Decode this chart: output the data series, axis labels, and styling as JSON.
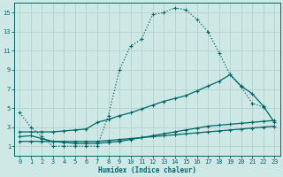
{
  "xlabel": "Humidex (Indice chaleur)",
  "bg_color": "#cde8e5",
  "grid_color": "#b5d0cd",
  "line_color": "#006666",
  "xlim": [
    -0.5,
    23.5
  ],
  "ylim": [
    0,
    16
  ],
  "xticks": [
    0,
    1,
    2,
    3,
    4,
    5,
    6,
    7,
    8,
    9,
    10,
    11,
    12,
    13,
    14,
    15,
    16,
    17,
    18,
    19,
    20,
    21,
    22,
    23
  ],
  "yticks": [
    1,
    3,
    5,
    7,
    9,
    11,
    13,
    15
  ],
  "line1_x": [
    0,
    1,
    2,
    3,
    4,
    5,
    6,
    7,
    8,
    9,
    10,
    11,
    12,
    13,
    14,
    15,
    16,
    17,
    18,
    19,
    20,
    21,
    22
  ],
  "line1_y": [
    4.5,
    3.0,
    2.0,
    1.0,
    1.0,
    1.0,
    1.0,
    1.0,
    4.2,
    9.0,
    11.5,
    12.2,
    14.8,
    15.0,
    15.5,
    15.3,
    14.3,
    13.0,
    10.8,
    8.5,
    7.2,
    5.5,
    5.1
  ],
  "line2_x": [
    0,
    1,
    2,
    3,
    4,
    5,
    6,
    7,
    8,
    9,
    10,
    11,
    12,
    13,
    14,
    15,
    16,
    17,
    18,
    19,
    20,
    21,
    22,
    23
  ],
  "line2_y": [
    2.5,
    2.5,
    2.5,
    2.5,
    2.6,
    2.7,
    2.8,
    3.5,
    3.8,
    4.2,
    4.5,
    4.9,
    5.3,
    5.7,
    6.0,
    6.3,
    6.8,
    7.3,
    7.8,
    8.5,
    7.3,
    6.5,
    5.2,
    3.5
  ],
  "line3_x": [
    0,
    1,
    2,
    3,
    4,
    5,
    6,
    7,
    8,
    9,
    10,
    11,
    12,
    13,
    14,
    15,
    16,
    17,
    18,
    19,
    20,
    21,
    22,
    23
  ],
  "line3_y": [
    2.0,
    2.1,
    1.8,
    1.5,
    1.4,
    1.3,
    1.3,
    1.3,
    1.4,
    1.5,
    1.7,
    1.9,
    2.1,
    2.3,
    2.5,
    2.7,
    2.9,
    3.1,
    3.2,
    3.3,
    3.4,
    3.5,
    3.6,
    3.7
  ],
  "line4_x": [
    0,
    1,
    2,
    3,
    4,
    5,
    6,
    7,
    8,
    9,
    10,
    11,
    12,
    13,
    14,
    15,
    16,
    17,
    18,
    19,
    20,
    21,
    22,
    23
  ],
  "line4_y": [
    1.5,
    1.5,
    1.5,
    1.5,
    1.5,
    1.5,
    1.5,
    1.5,
    1.6,
    1.7,
    1.8,
    1.9,
    2.0,
    2.1,
    2.2,
    2.3,
    2.4,
    2.5,
    2.6,
    2.7,
    2.8,
    2.9,
    3.0,
    3.1
  ]
}
